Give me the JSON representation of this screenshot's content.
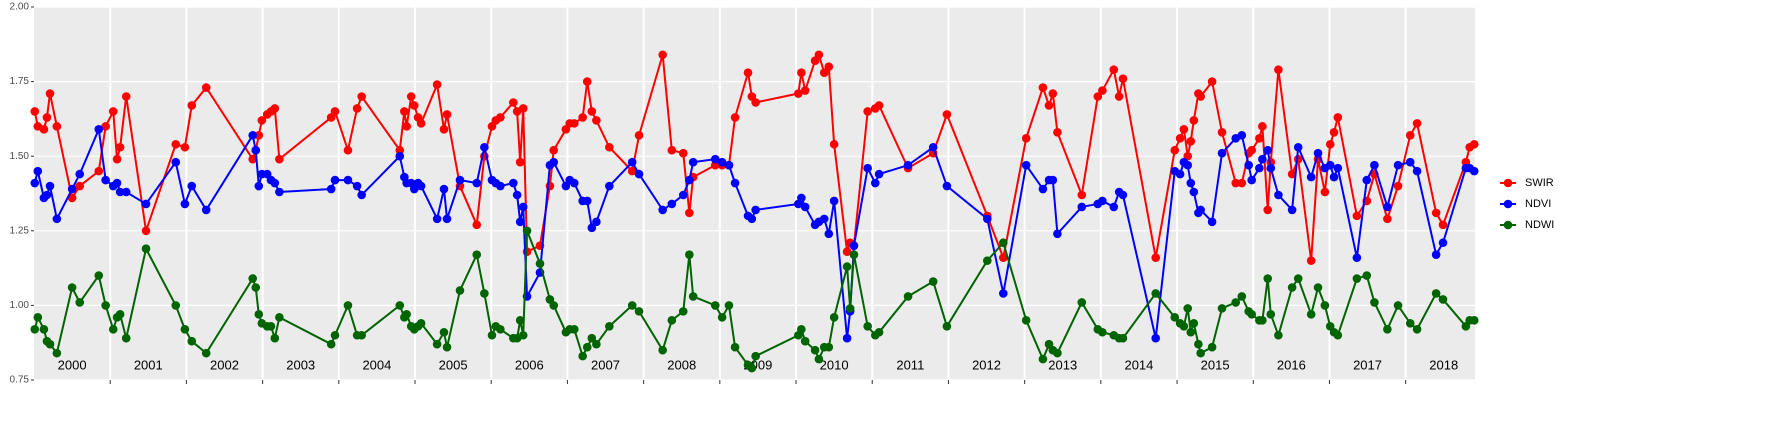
{
  "chart_data": {
    "type": "line",
    "x": [
      2000.01,
      2000.05,
      2000.13,
      2000.17,
      2000.21,
      2000.3,
      2000.5,
      2000.6,
      2000.85,
      2000.94,
      2001.04,
      2001.09,
      2001.13,
      2001.21,
      2001.47,
      2001.86,
      2001.98,
      2002.07,
      2002.26,
      2002.87,
      2002.91,
      2002.95,
      2002.99,
      2003.06,
      2003.11,
      2003.16,
      2003.22,
      2003.9,
      2003.95,
      2004.12,
      2004.24,
      2004.3,
      2004.8,
      2004.86,
      2004.89,
      2004.95,
      2004.99,
      2005.04,
      2005.08,
      2005.29,
      2005.38,
      2005.42,
      2005.59,
      2005.81,
      2005.91,
      2006.01,
      2006.06,
      2006.12,
      2006.29,
      2006.34,
      2006.38,
      2006.42,
      2006.47,
      2006.64,
      2006.77,
      2006.82,
      2006.98,
      2007.03,
      2007.09,
      2007.2,
      2007.26,
      2007.32,
      2007.38,
      2007.55,
      2007.85,
      2007.94,
      2008.25,
      2008.37,
      2008.52,
      2008.6,
      2008.65,
      2008.94,
      2009.03,
      2009.12,
      2009.2,
      2009.37,
      2009.42,
      2009.47,
      2010.03,
      2010.07,
      2010.12,
      2010.25,
      2010.3,
      2010.37,
      2010.43,
      2010.5,
      2010.67,
      2010.71,
      2010.76,
      2010.94,
      2011.04,
      2011.09,
      2011.47,
      2011.8,
      2011.98,
      2012.51,
      2012.72,
      2013.02,
      2013.24,
      2013.32,
      2013.37,
      2013.43,
      2013.75,
      2013.96,
      2014.02,
      2014.17,
      2014.24,
      2014.29,
      2014.72,
      2014.97,
      2015.04,
      2015.09,
      2015.14,
      2015.18,
      2015.22,
      2015.28,
      2015.31,
      2015.46,
      2015.59,
      2015.77,
      2015.85,
      2015.94,
      2015.98,
      2016.08,
      2016.12,
      2016.19,
      2016.23,
      2016.33,
      2016.51,
      2016.59,
      2016.76,
      2016.85,
      2016.94,
      2017.01,
      2017.06,
      2017.11,
      2017.36,
      2017.49,
      2017.59,
      2017.76,
      2017.9,
      2018.06,
      2018.15,
      2018.4,
      2018.49,
      2018.79,
      2018.84,
      2018.9
    ],
    "series": [
      {
        "name": "SWIR",
        "color": "#ff0000",
        "values": [
          1.65,
          1.6,
          1.59,
          1.63,
          1.71,
          1.6,
          1.36,
          1.4,
          1.45,
          1.6,
          1.65,
          1.49,
          1.53,
          1.7,
          1.25,
          1.54,
          1.53,
          1.67,
          1.73,
          1.49,
          1.52,
          1.57,
          1.62,
          1.64,
          1.65,
          1.66,
          1.49,
          1.63,
          1.65,
          1.52,
          1.66,
          1.7,
          1.52,
          1.65,
          1.6,
          1.7,
          1.67,
          1.63,
          1.61,
          1.74,
          1.59,
          1.64,
          1.4,
          1.27,
          1.5,
          1.6,
          1.62,
          1.63,
          1.68,
          1.65,
          1.48,
          1.66,
          1.18,
          1.2,
          1.4,
          1.52,
          1.59,
          1.61,
          1.61,
          1.63,
          1.75,
          1.65,
          1.62,
          1.53,
          1.45,
          1.57,
          1.84,
          1.52,
          1.51,
          1.31,
          1.43,
          1.47,
          1.47,
          1.47,
          1.63,
          1.78,
          1.7,
          1.68,
          1.71,
          1.78,
          1.72,
          1.82,
          1.84,
          1.78,
          1.8,
          1.54,
          1.18,
          1.21,
          1.2,
          1.65,
          1.66,
          1.67,
          1.46,
          1.51,
          1.64,
          1.3,
          1.16,
          1.56,
          1.73,
          1.67,
          1.71,
          1.58,
          1.37,
          1.7,
          1.72,
          1.79,
          1.7,
          1.76,
          1.16,
          1.52,
          1.56,
          1.59,
          1.5,
          1.55,
          1.62,
          1.71,
          1.7,
          1.75,
          1.58,
          1.41,
          1.41,
          1.51,
          1.52,
          1.56,
          1.6,
          1.32,
          1.48,
          1.79,
          1.44,
          1.49,
          1.15,
          1.49,
          1.38,
          1.54,
          1.58,
          1.63,
          1.3,
          1.35,
          1.44,
          1.29,
          1.4,
          1.57,
          1.61,
          1.31,
          1.27,
          1.48,
          1.53,
          1.54
        ]
      },
      {
        "name": "NDVI",
        "color": "#0000ff",
        "values": [
          1.41,
          1.45,
          1.36,
          1.37,
          1.4,
          1.29,
          1.39,
          1.44,
          1.59,
          1.42,
          1.4,
          1.41,
          1.38,
          1.38,
          1.34,
          1.48,
          1.34,
          1.4,
          1.32,
          1.57,
          1.52,
          1.4,
          1.44,
          1.44,
          1.42,
          1.41,
          1.38,
          1.39,
          1.42,
          1.42,
          1.4,
          1.37,
          1.5,
          1.43,
          1.41,
          1.41,
          1.39,
          1.41,
          1.4,
          1.29,
          1.39,
          1.29,
          1.42,
          1.41,
          1.53,
          1.42,
          1.41,
          1.4,
          1.41,
          1.37,
          1.28,
          1.33,
          1.03,
          1.11,
          1.47,
          1.48,
          1.4,
          1.42,
          1.41,
          1.35,
          1.35,
          1.26,
          1.28,
          1.4,
          1.48,
          1.44,
          1.32,
          1.34,
          1.37,
          1.42,
          1.48,
          1.49,
          1.48,
          1.47,
          1.41,
          1.3,
          1.29,
          1.32,
          1.34,
          1.36,
          1.33,
          1.27,
          1.28,
          1.29,
          1.24,
          1.35,
          0.89,
          0.98,
          1.2,
          1.46,
          1.41,
          1.44,
          1.47,
          1.53,
          1.4,
          1.29,
          1.04,
          1.47,
          1.39,
          1.42,
          1.42,
          1.24,
          1.33,
          1.34,
          1.35,
          1.33,
          1.38,
          1.37,
          0.89,
          1.45,
          1.44,
          1.48,
          1.47,
          1.41,
          1.38,
          1.31,
          1.32,
          1.28,
          1.51,
          1.56,
          1.57,
          1.47,
          1.42,
          1.46,
          1.49,
          1.52,
          1.46,
          1.37,
          1.32,
          1.53,
          1.43,
          1.51,
          1.46,
          1.47,
          1.43,
          1.46,
          1.16,
          1.42,
          1.47,
          1.33,
          1.47,
          1.48,
          1.45,
          1.17,
          1.21,
          1.46,
          1.46,
          1.45
        ]
      },
      {
        "name": "NDWI",
        "color": "#006400",
        "values": [
          0.92,
          0.96,
          0.92,
          0.88,
          0.87,
          0.84,
          1.06,
          1.01,
          1.1,
          1.0,
          0.92,
          0.96,
          0.97,
          0.89,
          1.19,
          1.0,
          0.92,
          0.88,
          0.84,
          1.09,
          1.06,
          0.97,
          0.94,
          0.93,
          0.93,
          0.89,
          0.96,
          0.87,
          0.9,
          1.0,
          0.9,
          0.9,
          1.0,
          0.96,
          0.97,
          0.93,
          0.92,
          0.93,
          0.94,
          0.87,
          0.91,
          0.86,
          1.05,
          1.17,
          1.04,
          0.9,
          0.93,
          0.92,
          0.89,
          0.89,
          0.95,
          0.9,
          1.25,
          1.14,
          1.02,
          1.0,
          0.91,
          0.92,
          0.92,
          0.83,
          0.86,
          0.89,
          0.87,
          0.93,
          1.0,
          0.98,
          0.85,
          0.95,
          0.98,
          1.17,
          1.03,
          1.0,
          0.96,
          1.0,
          0.86,
          0.8,
          0.79,
          0.83,
          0.9,
          0.92,
          0.88,
          0.85,
          0.82,
          0.86,
          0.86,
          0.96,
          1.13,
          0.99,
          1.17,
          0.93,
          0.9,
          0.91,
          1.03,
          1.08,
          0.93,
          1.15,
          1.21,
          0.95,
          0.82,
          0.87,
          0.85,
          0.84,
          1.01,
          0.92,
          0.91,
          0.9,
          0.89,
          0.89,
          1.04,
          0.96,
          0.94,
          0.93,
          0.99,
          0.91,
          0.94,
          0.87,
          0.84,
          0.86,
          0.99,
          1.01,
          1.03,
          0.98,
          0.97,
          0.95,
          0.95,
          1.09,
          0.97,
          0.9,
          1.06,
          1.09,
          0.97,
          1.06,
          1.0,
          0.93,
          0.91,
          0.9,
          1.09,
          1.1,
          1.01,
          0.92,
          1.0,
          0.94,
          0.92,
          1.04,
          1.02,
          0.93,
          0.95,
          0.95
        ]
      }
    ],
    "xlim": [
      2000,
      2018.91
    ],
    "xticks": [
      {
        "value": 2000.5,
        "label": "2000"
      },
      {
        "value": 2001.5,
        "label": "2001"
      },
      {
        "value": 2002.5,
        "label": "2002"
      },
      {
        "value": 2003.5,
        "label": "2003"
      },
      {
        "value": 2004.5,
        "label": "2004"
      },
      {
        "value": 2005.5,
        "label": "2005"
      },
      {
        "value": 2006.5,
        "label": "2006"
      },
      {
        "value": 2007.5,
        "label": "2007"
      },
      {
        "value": 2008.5,
        "label": "2008"
      },
      {
        "value": 2009.5,
        "label": "2009"
      },
      {
        "value": 2010.5,
        "label": "2010"
      },
      {
        "value": 2011.5,
        "label": "2011"
      },
      {
        "value": 2012.5,
        "label": "2012"
      },
      {
        "value": 2013.5,
        "label": "2013"
      },
      {
        "value": 2014.5,
        "label": "2014"
      },
      {
        "value": 2015.5,
        "label": "2015"
      },
      {
        "value": 2016.5,
        "label": "2016"
      },
      {
        "value": 2017.5,
        "label": "2017"
      },
      {
        "value": 2018.5,
        "label": "2018"
      }
    ],
    "xgrid": [
      2001,
      2002,
      2003,
      2004,
      2005,
      2006,
      2007,
      2008,
      2009,
      2010,
      2011,
      2012,
      2013,
      2014,
      2015,
      2016,
      2017,
      2018
    ],
    "ylim": [
      0.75,
      2.0
    ],
    "yticks": [
      0.75,
      {
        "value": 1,
        "label": "1.00"
      },
      1.25,
      {
        "value": 1.5,
        "label": "1.50"
      },
      1.75,
      {
        "value": 2,
        "label": "2.00"
      }
    ],
    "grid": true,
    "legend": "right"
  }
}
